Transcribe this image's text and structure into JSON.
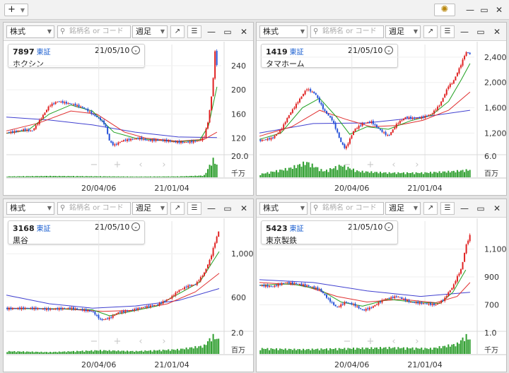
{
  "topbar": {
    "add_label": "+",
    "gear_icon": "gear-icon"
  },
  "toolbar_labels": {
    "type": "株式",
    "search_placeholder": "銘柄名 or コード",
    "period": "週足"
  },
  "x_ticks": [
    "20/04/06",
    "21/01/04"
  ],
  "colors": {
    "up": "#e02222",
    "down": "#2450d8",
    "ma_short": "#1fa01f",
    "ma_mid": "#e03030",
    "ma_long": "#4040d0",
    "volume": "#2e9e2e"
  },
  "panels": [
    {
      "code": "7897",
      "market": "東証",
      "date": "21/05/10",
      "name": "ホクシン",
      "price_labels": [
        "240",
        "200",
        "160",
        "120"
      ],
      "volume_labels": [
        "20.0",
        "千万"
      ],
      "chart_data": {
        "type": "candlestick",
        "y_range": [
          95,
          275
        ],
        "yticks": [
          240,
          200,
          160,
          120
        ],
        "points": [
          [
            0,
            129
          ],
          [
            4,
            131
          ],
          [
            8,
            134
          ],
          [
            12,
            132
          ],
          [
            16,
            152
          ],
          [
            20,
            174
          ],
          [
            24,
            181
          ],
          [
            28,
            178
          ],
          [
            32,
            175
          ],
          [
            36,
            170
          ],
          [
            40,
            160
          ],
          [
            44,
            150
          ],
          [
            46,
            142
          ],
          [
            48,
            115
          ],
          [
            50,
            108
          ],
          [
            54,
            116
          ],
          [
            58,
            118
          ],
          [
            62,
            120
          ],
          [
            66,
            116
          ],
          [
            70,
            117
          ],
          [
            74,
            116
          ],
          [
            78,
            114
          ],
          [
            82,
            113
          ],
          [
            86,
            114
          ],
          [
            90,
            116
          ],
          [
            92,
            122
          ],
          [
            94,
            150
          ],
          [
            96,
            205
          ],
          [
            97,
            265
          ],
          [
            98,
            240
          ]
        ],
        "ma_short": [
          [
            0,
            128
          ],
          [
            10,
            133
          ],
          [
            20,
            160
          ],
          [
            30,
            175
          ],
          [
            40,
            165
          ],
          [
            50,
            130
          ],
          [
            60,
            120
          ],
          [
            70,
            117
          ],
          [
            80,
            114
          ],
          [
            90,
            117
          ],
          [
            94,
            140
          ],
          [
            98,
            205
          ]
        ],
        "ma_mid": [
          [
            0,
            132
          ],
          [
            15,
            145
          ],
          [
            30,
            165
          ],
          [
            42,
            160
          ],
          [
            55,
            130
          ],
          [
            65,
            120
          ],
          [
            80,
            115
          ],
          [
            92,
            118
          ],
          [
            98,
            130
          ]
        ],
        "ma_long": [
          [
            0,
            155
          ],
          [
            20,
            150
          ],
          [
            40,
            142
          ],
          [
            60,
            130
          ],
          [
            80,
            122
          ],
          [
            98,
            121
          ]
        ],
        "volume_y_max": 20,
        "volume": [
          [
            0,
            1
          ],
          [
            20,
            1.5
          ],
          [
            40,
            1.2
          ],
          [
            60,
            0.8
          ],
          [
            80,
            1
          ],
          [
            92,
            2
          ],
          [
            94,
            10
          ],
          [
            96,
            20
          ],
          [
            98,
            14
          ]
        ]
      }
    },
    {
      "code": "1419",
      "market": "東証",
      "date": "21/05/10",
      "name": "タマホーム",
      "price_labels": [
        "2,400",
        "2,000",
        "1,600",
        "1,200"
      ],
      "volume_labels": [
        "6.0",
        "百万"
      ],
      "chart_data": {
        "type": "candlestick",
        "y_range": [
          880,
          2600
        ],
        "yticks": [
          2400,
          2000,
          1600,
          1200
        ],
        "points": [
          [
            0,
            1080
          ],
          [
            6,
            1120
          ],
          [
            10,
            1250
          ],
          [
            14,
            1500
          ],
          [
            18,
            1700
          ],
          [
            22,
            1900
          ],
          [
            26,
            1820
          ],
          [
            30,
            1560
          ],
          [
            34,
            1400
          ],
          [
            38,
            1050
          ],
          [
            40,
            950
          ],
          [
            44,
            1250
          ],
          [
            48,
            1350
          ],
          [
            52,
            1380
          ],
          [
            56,
            1250
          ],
          [
            60,
            1150
          ],
          [
            64,
            1350
          ],
          [
            68,
            1450
          ],
          [
            72,
            1430
          ],
          [
            76,
            1450
          ],
          [
            80,
            1500
          ],
          [
            84,
            1650
          ],
          [
            86,
            1800
          ],
          [
            88,
            1950
          ],
          [
            90,
            2000
          ],
          [
            92,
            2150
          ],
          [
            94,
            2300
          ],
          [
            96,
            2480
          ],
          [
            98,
            2450
          ]
        ],
        "ma_short": [
          [
            0,
            1100
          ],
          [
            10,
            1200
          ],
          [
            20,
            1600
          ],
          [
            28,
            1750
          ],
          [
            36,
            1450
          ],
          [
            42,
            1180
          ],
          [
            50,
            1300
          ],
          [
            60,
            1260
          ],
          [
            70,
            1390
          ],
          [
            80,
            1480
          ],
          [
            88,
            1700
          ],
          [
            94,
            2050
          ],
          [
            98,
            2300
          ]
        ],
        "ma_mid": [
          [
            0,
            1150
          ],
          [
            15,
            1300
          ],
          [
            28,
            1560
          ],
          [
            40,
            1420
          ],
          [
            52,
            1300
          ],
          [
            64,
            1320
          ],
          [
            76,
            1400
          ],
          [
            88,
            1560
          ],
          [
            98,
            1850
          ]
        ],
        "ma_long": [
          [
            0,
            1200
          ],
          [
            25,
            1350
          ],
          [
            50,
            1360
          ],
          [
            75,
            1450
          ],
          [
            98,
            1560
          ]
        ],
        "volume_y_max": 6,
        "volume": [
          [
            0,
            1
          ],
          [
            14,
            3
          ],
          [
            22,
            5
          ],
          [
            30,
            2
          ],
          [
            38,
            4
          ],
          [
            46,
            2
          ],
          [
            60,
            1.5
          ],
          [
            76,
            1.5
          ],
          [
            90,
            2
          ],
          [
            98,
            2.5
          ]
        ]
      }
    },
    {
      "code": "3168",
      "market": "東証",
      "date": "21/05/10",
      "name": "黒谷",
      "price_labels": [
        "1,000",
        "600"
      ],
      "volume_labels": [
        "2.0",
        "百万"
      ],
      "chart_data": {
        "type": "candlestick",
        "y_range": [
          300,
          1300
        ],
        "yticks": [
          1000,
          600
        ],
        "points": [
          [
            0,
            495
          ],
          [
            10,
            500
          ],
          [
            20,
            490
          ],
          [
            30,
            500
          ],
          [
            40,
            470
          ],
          [
            44,
            390
          ],
          [
            48,
            410
          ],
          [
            52,
            460
          ],
          [
            58,
            480
          ],
          [
            64,
            510
          ],
          [
            70,
            530
          ],
          [
            76,
            590
          ],
          [
            80,
            660
          ],
          [
            84,
            700
          ],
          [
            88,
            720
          ],
          [
            92,
            820
          ],
          [
            95,
            960
          ],
          [
            97,
            1100
          ],
          [
            99,
            1220
          ]
        ],
        "ma_short": [
          [
            0,
            495
          ],
          [
            20,
            495
          ],
          [
            40,
            485
          ],
          [
            48,
            430
          ],
          [
            58,
            470
          ],
          [
            70,
            520
          ],
          [
            80,
            630
          ],
          [
            90,
            740
          ],
          [
            99,
            1020
          ]
        ],
        "ma_mid": [
          [
            0,
            500
          ],
          [
            25,
            495
          ],
          [
            45,
            470
          ],
          [
            60,
            480
          ],
          [
            75,
            540
          ],
          [
            88,
            650
          ],
          [
            99,
            820
          ]
        ],
        "ma_long": [
          [
            0,
            620
          ],
          [
            20,
            540
          ],
          [
            40,
            500
          ],
          [
            60,
            520
          ],
          [
            80,
            570
          ],
          [
            99,
            680
          ]
        ],
        "volume_y_max": 2,
        "volume": [
          [
            0,
            0.3
          ],
          [
            20,
            0.2
          ],
          [
            44,
            0.4
          ],
          [
            60,
            0.3
          ],
          [
            80,
            0.5
          ],
          [
            92,
            0.9
          ],
          [
            96,
            2
          ],
          [
            99,
            1.5
          ]
        ]
      }
    },
    {
      "code": "5423",
      "market": "東証",
      "date": "21/05/10",
      "name": "東京製鉄",
      "price_labels": [
        "1,100",
        "900",
        "700"
      ],
      "volume_labels": [
        "1.0",
        "千万"
      ],
      "chart_data": {
        "type": "candlestick",
        "y_range": [
          520,
          1300
        ],
        "yticks": [
          1100,
          900,
          700
        ],
        "points": [
          [
            0,
            840
          ],
          [
            6,
            830
          ],
          [
            12,
            860
          ],
          [
            18,
            850
          ],
          [
            24,
            830
          ],
          [
            28,
            810
          ],
          [
            32,
            740
          ],
          [
            36,
            680
          ],
          [
            40,
            720
          ],
          [
            44,
            700
          ],
          [
            48,
            660
          ],
          [
            52,
            680
          ],
          [
            58,
            740
          ],
          [
            64,
            760
          ],
          [
            70,
            720
          ],
          [
            76,
            710
          ],
          [
            82,
            700
          ],
          [
            86,
            740
          ],
          [
            88,
            790
          ],
          [
            90,
            830
          ],
          [
            92,
            900
          ],
          [
            94,
            960
          ],
          [
            96,
            1120
          ],
          [
            98,
            1200
          ]
        ],
        "ma_short": [
          [
            0,
            840
          ],
          [
            15,
            850
          ],
          [
            28,
            810
          ],
          [
            38,
            720
          ],
          [
            48,
            690
          ],
          [
            60,
            740
          ],
          [
            72,
            720
          ],
          [
            84,
            710
          ],
          [
            90,
            790
          ],
          [
            96,
            950
          ]
        ],
        "ma_mid": [
          [
            0,
            860
          ],
          [
            20,
            840
          ],
          [
            36,
            760
          ],
          [
            50,
            720
          ],
          [
            66,
            740
          ],
          [
            82,
            715
          ],
          [
            92,
            760
          ],
          [
            98,
            860
          ]
        ],
        "ma_long": [
          [
            0,
            880
          ],
          [
            25,
            860
          ],
          [
            50,
            800
          ],
          [
            75,
            760
          ],
          [
            98,
            790
          ]
        ],
        "volume_y_max": 1,
        "volume": [
          [
            0,
            0.3
          ],
          [
            20,
            0.25
          ],
          [
            40,
            0.3
          ],
          [
            60,
            0.35
          ],
          [
            80,
            0.3
          ],
          [
            92,
            0.55
          ],
          [
            96,
            1
          ],
          [
            98,
            0.8
          ]
        ]
      }
    }
  ]
}
